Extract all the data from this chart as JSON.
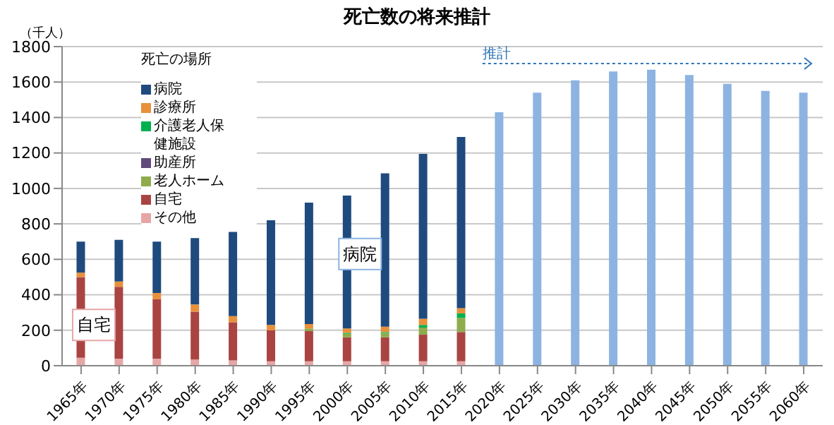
{
  "chart_data": {
    "type": "bar",
    "title": "死亡数の将来推計",
    "ylabel": "（千人）",
    "legend_title": "死亡の場所",
    "stacked": true,
    "grid": "y",
    "legend": "top left",
    "categories": [
      "1965年",
      "1970年",
      "1975年",
      "1980年",
      "1985年",
      "1990年",
      "1995年",
      "2000年",
      "2005年",
      "2010年",
      "2015年",
      "2020年",
      "2025年",
      "2030年",
      "2035年",
      "2040年",
      "2045年",
      "2050年",
      "2055年",
      "2060年"
    ],
    "ylim": [
      0,
      1800
    ],
    "yticks": [
      0,
      200,
      400,
      600,
      800,
      1000,
      1200,
      1400,
      1600,
      1800
    ],
    "series": [
      {
        "name": "その他",
        "color": "#e6a6a6",
        "values": [
          45,
          40,
          40,
          35,
          30,
          25,
          25,
          25,
          25,
          25,
          25,
          null,
          null,
          null,
          null,
          null,
          null,
          null,
          null,
          null
        ]
      },
      {
        "name": "自宅",
        "color": "#a94442",
        "values": [
          455,
          405,
          335,
          270,
          215,
          175,
          170,
          135,
          135,
          150,
          165,
          null,
          null,
          null,
          null,
          null,
          null,
          null,
          null,
          null
        ]
      },
      {
        "name": "老人ホーム",
        "color": "#8fac4c",
        "values": [
          0,
          0,
          0,
          0,
          0,
          0,
          15,
          20,
          25,
          40,
          80,
          null,
          null,
          null,
          null,
          null,
          null,
          null,
          null,
          null
        ]
      },
      {
        "name": "助産所",
        "color": "#604a7b",
        "values": [
          0,
          0,
          0,
          0,
          0,
          0,
          0,
          0,
          0,
          0,
          0,
          null,
          null,
          null,
          null,
          null,
          null,
          null,
          null,
          null
        ]
      },
      {
        "name": "介護老人保健施設",
        "color": "#00b050",
        "values": [
          0,
          0,
          0,
          0,
          0,
          0,
          0,
          5,
          5,
          15,
          25,
          null,
          null,
          null,
          null,
          null,
          null,
          null,
          null,
          null
        ]
      },
      {
        "name": "診療所",
        "color": "#e8903a",
        "values": [
          25,
          30,
          35,
          40,
          35,
          30,
          25,
          25,
          30,
          35,
          30,
          null,
          null,
          null,
          null,
          null,
          null,
          null,
          null,
          null
        ]
      },
      {
        "name": "病院",
        "color": "#1f4a7e",
        "values": [
          175,
          235,
          290,
          375,
          475,
          590,
          685,
          750,
          865,
          930,
          965,
          null,
          null,
          null,
          null,
          null,
          null,
          null,
          null,
          null
        ]
      },
      {
        "color": "#8db3e2",
        "values": [
          null,
          null,
          null,
          null,
          null,
          null,
          null,
          null,
          null,
          null,
          null,
          1430,
          1540,
          1610,
          1660,
          1670,
          1640,
          1590,
          1550,
          1540
        ]
      }
    ],
    "annotations": [
      {
        "text": "自宅",
        "x": "1965年",
        "y": 230
      },
      {
        "text": "病院",
        "x": "2000年",
        "y": 630
      },
      "推計"
    ]
  }
}
